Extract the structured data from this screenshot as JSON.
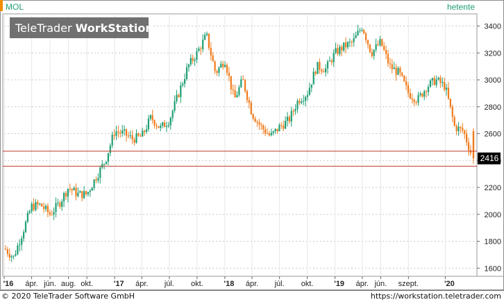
{
  "symbol": "MOL",
  "period_label": "hetente",
  "brand": {
    "prefix": "TeleTrader ",
    "bold": "WorkStation"
  },
  "footer": {
    "copyright": "© 2020 TeleTrader Software GmbH",
    "url": "https://workstation.teletrader.com"
  },
  "last_price_tag": "2416",
  "colors": {
    "up": "#1f9e73",
    "down": "#f07a1a",
    "ref_line": "#c0392b",
    "accent": "#f28c00",
    "period_text": "#1f9e73",
    "axis_text": "#222222",
    "grid": "#c8c8c8",
    "tag_bg": "#000000",
    "brand_bg": "#707070"
  },
  "chart_data": {
    "type": "candlestick",
    "title": "MOL",
    "interval": "hetente",
    "y_ticks": [
      1600,
      1800,
      2000,
      2200,
      2400,
      2600,
      2800,
      3000,
      3200,
      3400
    ],
    "ylim": [
      1550,
      3480
    ],
    "x_ticks": [
      {
        "label": "'16",
        "date": "2016-01"
      },
      {
        "label": "ápr.",
        "date": "2016-04"
      },
      {
        "label": "jún.",
        "date": "2016-06"
      },
      {
        "label": "aug.",
        "date": "2016-08"
      },
      {
        "label": "okt.",
        "date": "2016-10"
      },
      {
        "label": "'17",
        "date": "2017-01"
      },
      {
        "label": "ápr.",
        "date": "2017-04"
      },
      {
        "label": "júl.",
        "date": "2017-07"
      },
      {
        "label": "okt.",
        "date": "2017-10"
      },
      {
        "label": "'18",
        "date": "2018-01"
      },
      {
        "label": "ápr.",
        "date": "2018-04"
      },
      {
        "label": "júl.",
        "date": "2018-07"
      },
      {
        "label": "okt.",
        "date": "2018-10"
      },
      {
        "label": "'19",
        "date": "2019-01"
      },
      {
        "label": "ápr.",
        "date": "2019-04"
      },
      {
        "label": "jún.",
        "date": "2019-06"
      },
      {
        "label": "szept.",
        "date": "2019-09"
      },
      {
        "label": "'20",
        "date": "2020-01"
      }
    ],
    "horizontal_lines": [
      2470,
      2358
    ],
    "last_value": 2416,
    "grid": true,
    "trend_path": [
      [
        "2016-01",
        1750
      ],
      [
        "2016-02",
        1680
      ],
      [
        "2016-03",
        1860
      ],
      [
        "2016-04",
        2060
      ],
      [
        "2016-05",
        2070
      ],
      [
        "2016-06",
        2000
      ],
      [
        "2016-07",
        2080
      ],
      [
        "2016-08",
        2200
      ],
      [
        "2016-09",
        2150
      ],
      [
        "2016-10",
        2150
      ],
      [
        "2016-11",
        2280
      ],
      [
        "2016-12",
        2400
      ],
      [
        "2017-01",
        2620
      ],
      [
        "2017-02",
        2600
      ],
      [
        "2017-03",
        2560
      ],
      [
        "2017-04",
        2580
      ],
      [
        "2017-05",
        2720
      ],
      [
        "2017-06",
        2640
      ],
      [
        "2017-07",
        2700
      ],
      [
        "2017-08",
        2900
      ],
      [
        "2017-09",
        3100
      ],
      [
        "2017-10",
        3200
      ],
      [
        "2017-11",
        3330
      ],
      [
        "2017-12",
        3050
      ],
      [
        "2018-01",
        3150
      ],
      [
        "2018-02",
        2850
      ],
      [
        "2018-03",
        3000
      ],
      [
        "2018-04",
        2750
      ],
      [
        "2018-05",
        2650
      ],
      [
        "2018-06",
        2580
      ],
      [
        "2018-07",
        2650
      ],
      [
        "2018-08",
        2700
      ],
      [
        "2018-09",
        2850
      ],
      [
        "2018-10",
        2900
      ],
      [
        "2018-11",
        3100
      ],
      [
        "2018-12",
        3080
      ],
      [
        "2019-01",
        3200
      ],
      [
        "2019-02",
        3250
      ],
      [
        "2019-03",
        3280
      ],
      [
        "2019-04",
        3400
      ],
      [
        "2019-05",
        3200
      ],
      [
        "2019-06",
        3280
      ],
      [
        "2019-07",
        3100
      ],
      [
        "2019-08",
        3050
      ],
      [
        "2019-09",
        2900
      ],
      [
        "2019-10",
        2850
      ],
      [
        "2019-11",
        2950
      ],
      [
        "2019-12",
        3000
      ],
      [
        "2020-01",
        2950
      ],
      [
        "2020-02",
        2650
      ],
      [
        "2020-03",
        2620
      ],
      [
        "2020-04",
        2416
      ]
    ]
  }
}
